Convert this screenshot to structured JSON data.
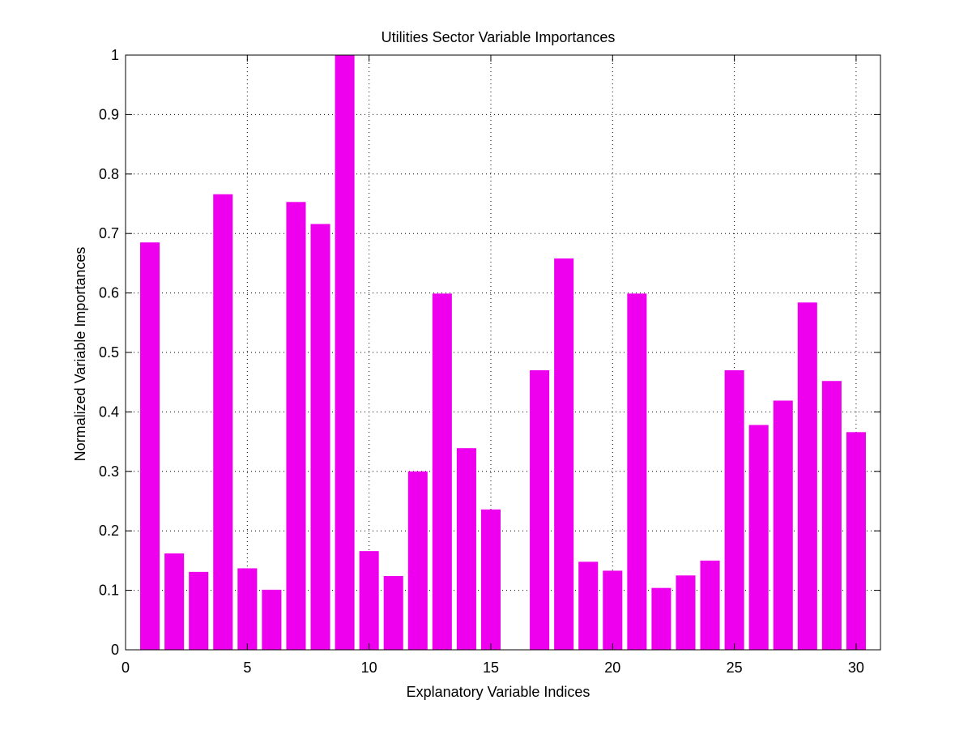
{
  "chart_data": {
    "type": "bar",
    "title": "Utilities Sector Variable Importances",
    "xlabel": "Explanatory Variable Indices",
    "ylabel": "Normalized Variable Importances",
    "categories": [
      1,
      2,
      3,
      4,
      5,
      6,
      7,
      8,
      9,
      10,
      11,
      12,
      13,
      14,
      15,
      16,
      17,
      18,
      19,
      20,
      21,
      22,
      23,
      24,
      25,
      26,
      27,
      28,
      29,
      30
    ],
    "values": [
      0.685,
      0.162,
      0.131,
      0.766,
      0.137,
      0.101,
      0.753,
      0.716,
      1.0,
      0.166,
      0.124,
      0.3,
      0.599,
      0.339,
      0.236,
      0.0,
      0.47,
      0.658,
      0.148,
      0.133,
      0.599,
      0.104,
      0.125,
      0.15,
      0.47,
      0.378,
      0.419,
      0.584,
      0.452,
      0.366
    ],
    "xlim": [
      0,
      31
    ],
    "ylim": [
      0,
      1
    ],
    "xticks": [
      "0",
      "5",
      "10",
      "15",
      "20",
      "25",
      "30"
    ],
    "yticks": [
      "0",
      "0.1",
      "0.2",
      "0.3",
      "0.4",
      "0.5",
      "0.6",
      "0.7",
      "0.8",
      "0.9",
      "1"
    ],
    "grid": true,
    "bar_color": "#ee00ee"
  }
}
